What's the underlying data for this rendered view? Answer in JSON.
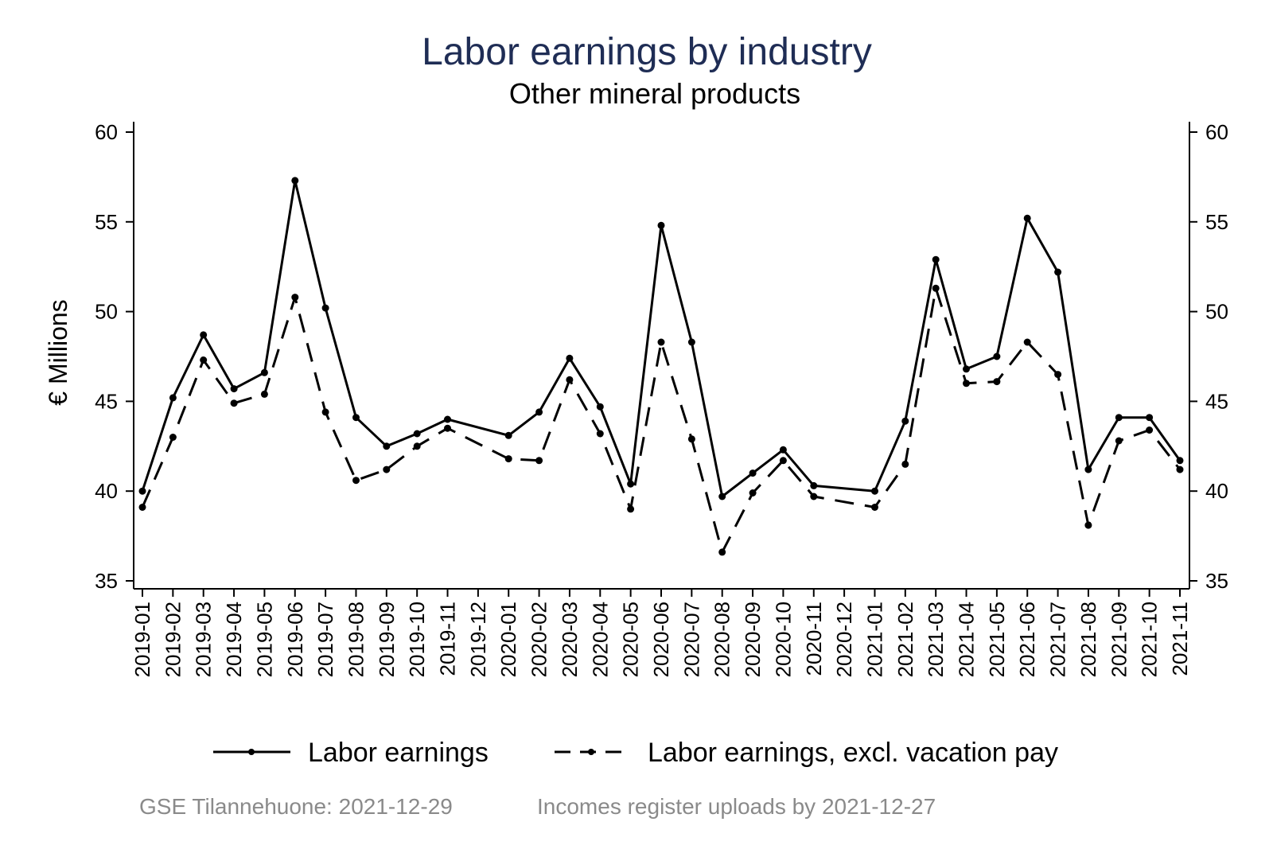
{
  "chart_data": {
    "type": "line",
    "title": "Labor earnings by industry",
    "subtitle": "Other mineral products",
    "ylabel": "€ Millions",
    "xlabel": "",
    "ylim": [
      35,
      60
    ],
    "yticks": [
      35,
      40,
      45,
      50,
      55,
      60
    ],
    "x": [
      "2019-01",
      "2019-02",
      "2019-03",
      "2019-04",
      "2019-05",
      "2019-06",
      "2019-07",
      "2019-08",
      "2019-09",
      "2019-10",
      "2019-11",
      "2019-12",
      "2020-01",
      "2020-02",
      "2020-03",
      "2020-04",
      "2020-05",
      "2020-06",
      "2020-07",
      "2020-08",
      "2020-09",
      "2020-10",
      "2020-11",
      "2020-12",
      "2021-01",
      "2021-02",
      "2021-03",
      "2021-04",
      "2021-05",
      "2021-06",
      "2021-07",
      "2021-08",
      "2021-09",
      "2021-10",
      "2021-11"
    ],
    "series": [
      {
        "name": "Labor earnings",
        "style": "solid",
        "values": [
          40.0,
          45.2,
          48.7,
          45.7,
          46.6,
          57.3,
          50.2,
          44.1,
          42.5,
          43.2,
          44.0,
          null,
          43.1,
          44.4,
          47.4,
          44.7,
          40.4,
          54.8,
          48.3,
          39.7,
          41.0,
          42.3,
          40.3,
          null,
          40.0,
          43.9,
          52.9,
          46.8,
          47.5,
          55.2,
          52.2,
          41.2,
          44.1,
          44.1,
          41.7
        ]
      },
      {
        "name": "Labor earnings, excl. vacation pay",
        "style": "dashed",
        "values": [
          39.1,
          43.0,
          47.3,
          44.9,
          45.4,
          50.8,
          44.4,
          40.6,
          41.2,
          42.5,
          43.5,
          null,
          41.8,
          41.7,
          46.2,
          43.2,
          39.0,
          48.3,
          42.9,
          36.6,
          39.9,
          41.7,
          39.7,
          null,
          39.1,
          41.5,
          51.3,
          46.0,
          46.1,
          48.3,
          46.5,
          38.1,
          42.8,
          43.4,
          41.2
        ]
      }
    ],
    "right_axis": true,
    "grid": false,
    "legend_position": "bottom"
  },
  "notes": {
    "source": "GSE Tilannehuone: 2021-12-29",
    "uploads": "Incomes register uploads by 2021-12-27"
  },
  "colors": {
    "title": "#1f2d55",
    "series": "#000000",
    "note": "#8a8a8a"
  }
}
